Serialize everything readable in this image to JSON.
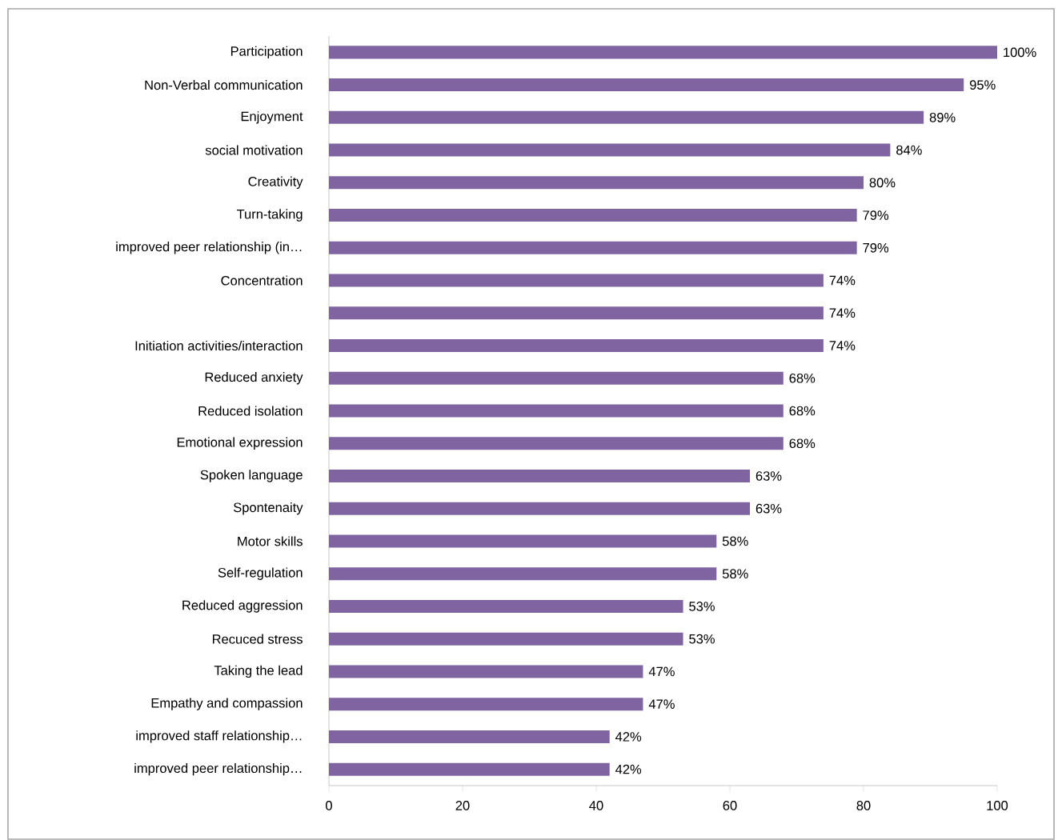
{
  "chart_data": {
    "type": "bar",
    "orientation": "horizontal",
    "color": "#8064a2",
    "categories": [
      "Participation",
      "Non-Verbal communication",
      "Enjoyment",
      "social motivation",
      "Creativity",
      "Turn-taking",
      "improved peer relationship (in…",
      "Concentration",
      null,
      "Initiation activities/interaction",
      "Reduced anxiety",
      "Reduced isolation",
      "Emotional expression",
      "Spoken language",
      "Spontenaity",
      "Motor skills",
      "Self-regulation",
      "Reduced aggression",
      "Recuced stress",
      "Taking the lead",
      "Empathy and compassion",
      "improved staff relationship…",
      "improved peer relationship…"
    ],
    "values": [
      100,
      95,
      89,
      84,
      80,
      79,
      79,
      74,
      74,
      74,
      68,
      68,
      68,
      63,
      63,
      58,
      58,
      53,
      53,
      47,
      47,
      42,
      42
    ],
    "value_labels": [
      "100%",
      "95%",
      "89%",
      "84%",
      "80%",
      "79%",
      "79%",
      "74%",
      "74%",
      "74%",
      "68%",
      "68%",
      "68%",
      "63%",
      "63%",
      "58%",
      "58%",
      "53%",
      "53%",
      "47%",
      "47%",
      "42%",
      "42%"
    ],
    "xlim": [
      0,
      100
    ],
    "xticks": [
      0,
      20,
      40,
      60,
      80,
      100
    ],
    "grid": false
  }
}
